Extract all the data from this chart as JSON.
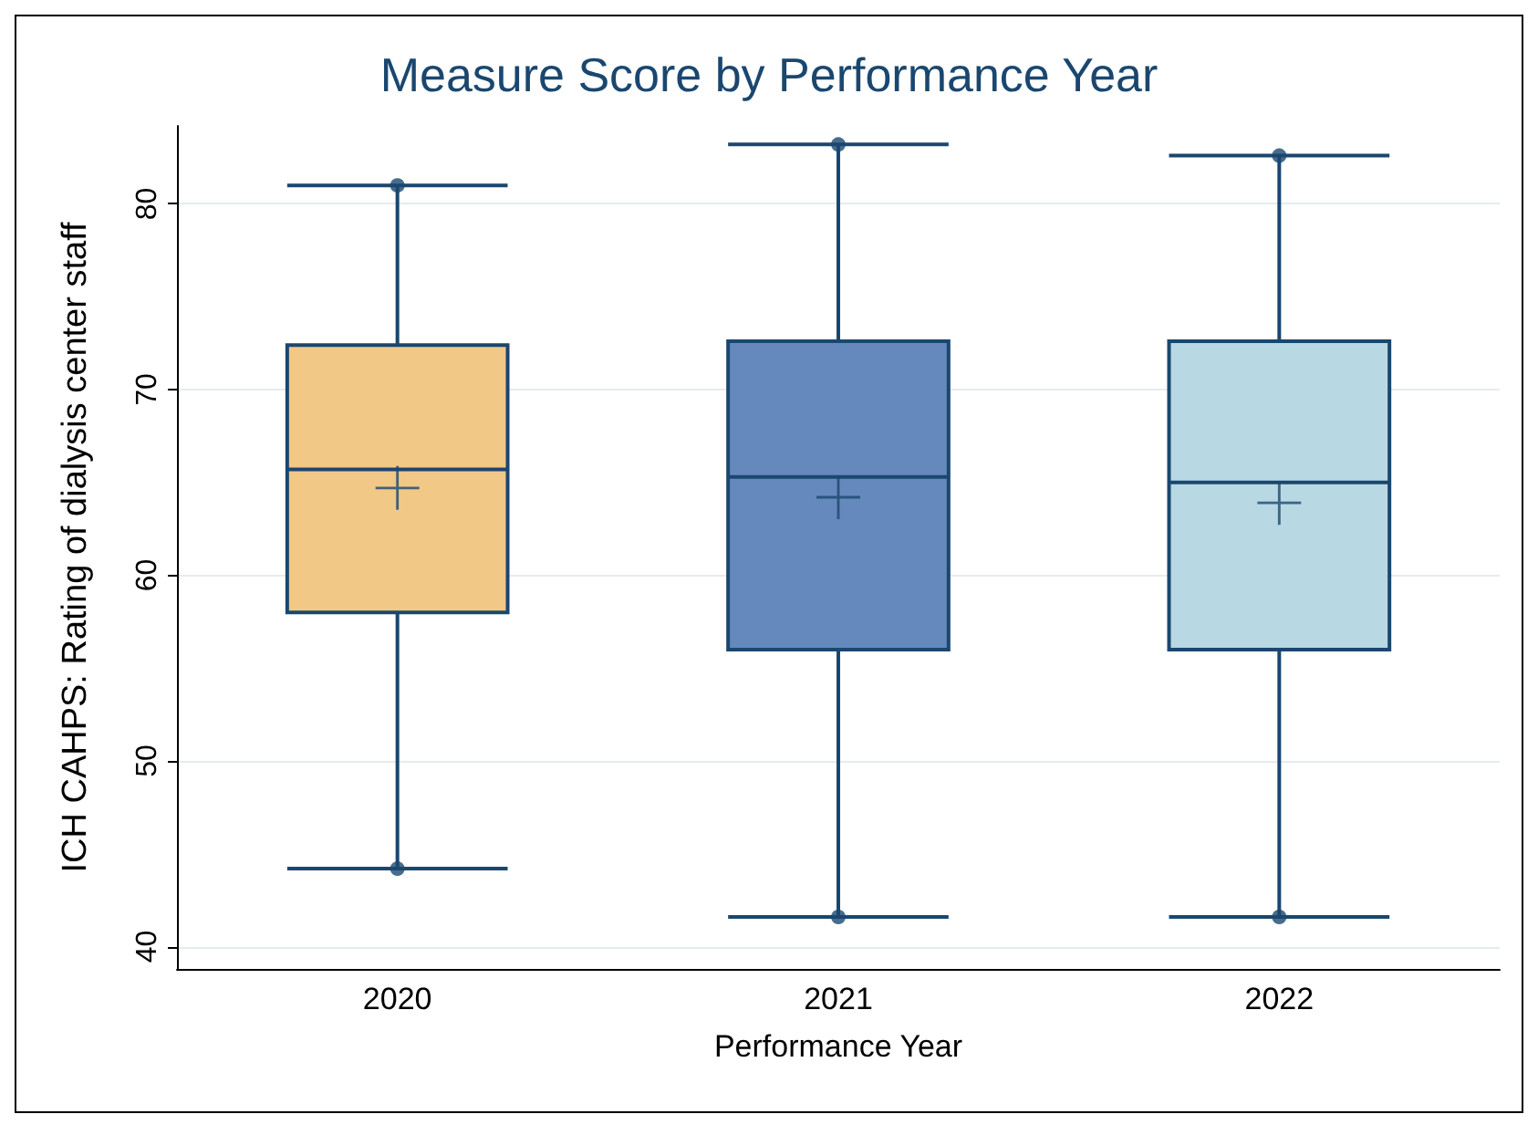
{
  "chart_data": {
    "type": "box",
    "title": "Measure Score by Performance Year",
    "xlabel": "Performance Year",
    "ylabel": "ICH CAHPS: Rating of dialysis center staff",
    "categories": [
      "2020",
      "2021",
      "2022"
    ],
    "colors": [
      "#f2c886",
      "#6689bd",
      "#b8d9e3"
    ],
    "boxes": [
      {
        "low": 44.2,
        "q1": 58.0,
        "median": 65.7,
        "q3": 72.4,
        "high": 81.0,
        "mean": 64.7,
        "outliers": [
          44.2,
          81.0
        ]
      },
      {
        "low": 41.6,
        "q1": 56.0,
        "median": 65.3,
        "q3": 72.6,
        "high": 83.2,
        "mean": 64.2,
        "outliers": [
          41.6,
          83.2
        ]
      },
      {
        "low": 41.6,
        "q1": 56.0,
        "median": 65.0,
        "q3": 72.6,
        "high": 82.6,
        "mean": 63.9,
        "outliers": [
          41.6,
          82.6
        ]
      }
    ],
    "ylim": [
      38.8,
      84.2
    ],
    "yticks": [
      40,
      50,
      60,
      70,
      80
    ],
    "grid": "y"
  }
}
